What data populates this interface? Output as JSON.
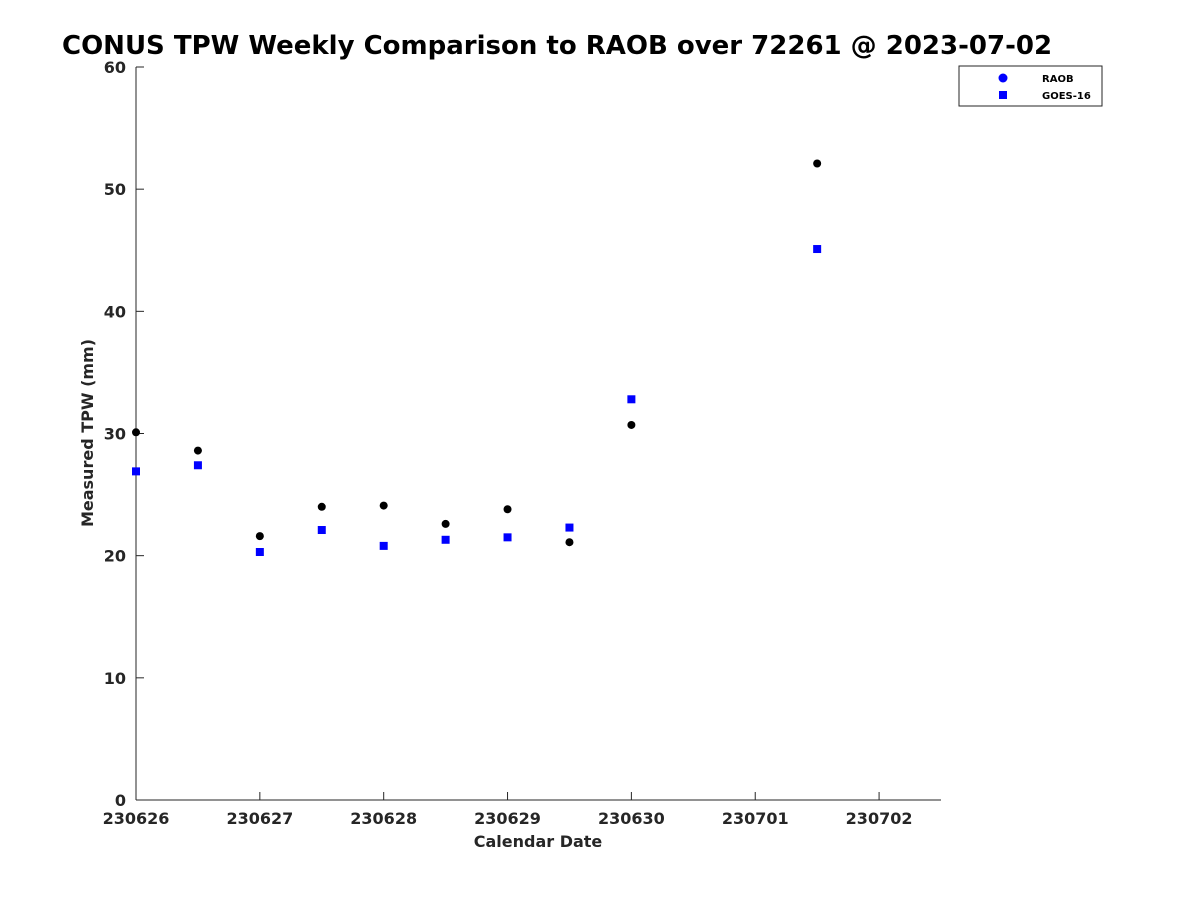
{
  "chart_data": {
    "type": "scatter",
    "title": "CONUS TPW Weekly Comparison to RAOB over 72261 @ 2023-07-02",
    "xlabel": "Calendar Date",
    "ylabel": "Measured TPW (mm)",
    "x_ticks": [
      "230626",
      "230627",
      "230628",
      "230629",
      "230630",
      "230701",
      "230702"
    ],
    "xlim": [
      0,
      6.5
    ],
    "ylim": [
      0,
      60
    ],
    "y_ticks": [
      0,
      10,
      20,
      30,
      40,
      50,
      60
    ],
    "grid": false,
    "legend_position": "top-right",
    "series": [
      {
        "name": "RAOB",
        "marker": "circle",
        "color": "#000000",
        "legend_color": "#0000ff",
        "x": [
          0,
          0.5,
          1,
          1.5,
          2,
          2.5,
          3,
          3.5,
          4,
          5.5
        ],
        "values": [
          30.1,
          28.6,
          21.6,
          24.0,
          24.1,
          22.6,
          23.8,
          21.1,
          30.7,
          52.1
        ]
      },
      {
        "name": "GOES-16",
        "marker": "square",
        "color": "#0000ff",
        "x": [
          0,
          0.5,
          1,
          1.5,
          2,
          2.5,
          3,
          3.5,
          4,
          5.5
        ],
        "values": [
          26.9,
          27.4,
          20.3,
          22.1,
          20.8,
          21.3,
          21.5,
          22.3,
          32.8,
          45.1
        ]
      }
    ]
  }
}
